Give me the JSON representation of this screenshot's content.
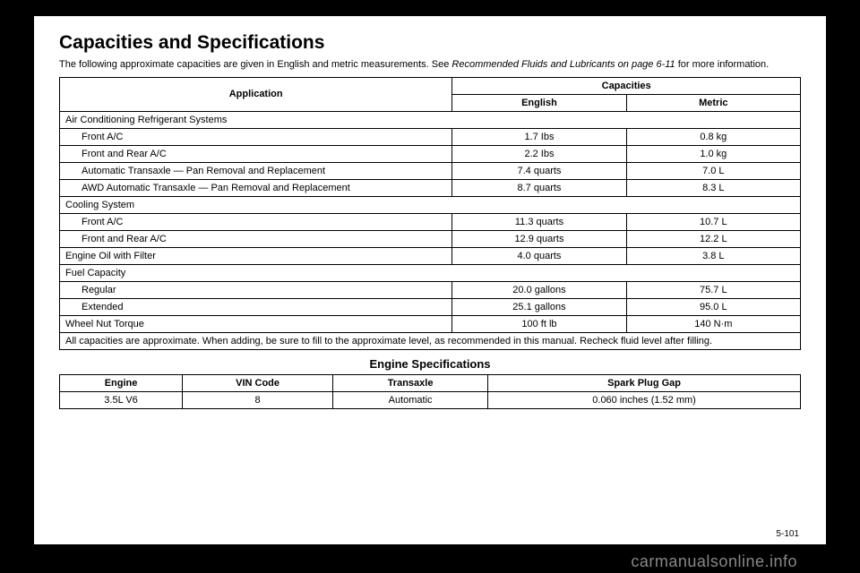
{
  "title": "Capacities and Specifications",
  "intro_plain": "The following approximate capacities are given in English and metric measurements. See ",
  "intro_italic": "Recommended Fluids and Lubricants on page 6‑11",
  "intro_tail": " for more information.",
  "headers": {
    "application": "Application",
    "capacities": "Capacities",
    "english": "English",
    "metric": "Metric"
  },
  "rows": [
    {
      "type": "section",
      "label": "Air Conditioning Refrigerant Systems"
    },
    {
      "type": "data",
      "indent": true,
      "label": "Front A/C",
      "english": "1.7 Ibs",
      "metric": "0.8 kg"
    },
    {
      "type": "data",
      "indent": true,
      "label": "Front and Rear A/C",
      "english": "2.2 Ibs",
      "metric": "1.0 kg"
    },
    {
      "type": "data",
      "indent": true,
      "label": "Automatic Transaxle — Pan Removal and Replacement",
      "english": "7.4 quarts",
      "metric": "7.0 L"
    },
    {
      "type": "data",
      "indent": true,
      "label": "AWD Automatic Transaxle — Pan Removal and Replacement",
      "english": "8.7 quarts",
      "metric": "8.3 L"
    },
    {
      "type": "section",
      "label": "Cooling System"
    },
    {
      "type": "data",
      "indent": true,
      "label": "Front A/C",
      "english": "11.3 quarts",
      "metric": "10.7 L"
    },
    {
      "type": "data",
      "indent": true,
      "label": "Front and Rear A/C",
      "english": "12.9 quarts",
      "metric": "12.2 L"
    },
    {
      "type": "data",
      "indent": false,
      "label": "Engine Oil with Filter",
      "english": "4.0 quarts",
      "metric": "3.8 L"
    },
    {
      "type": "section",
      "label": "Fuel Capacity"
    },
    {
      "type": "data",
      "indent": true,
      "label": "Regular",
      "english": "20.0 gallons",
      "metric": "75.7 L"
    },
    {
      "type": "data",
      "indent": true,
      "label": "Extended",
      "english": "25.1 gallons",
      "metric": "95.0 L"
    },
    {
      "type": "data",
      "indent": false,
      "label": "Wheel Nut Torque",
      "english": "100 ft lb",
      "metric": "140 N·m"
    },
    {
      "type": "footer",
      "label": "All capacities are approximate. When adding, be sure to fill to the approximate level, as recommended in this manual. Recheck fluid level after filling."
    }
  ],
  "engine_spec_title": "Engine Specifications",
  "eng_headers": {
    "engine": "Engine",
    "vin": "VIN Code",
    "trans": "Transaxle",
    "gap": "Spark Plug Gap"
  },
  "eng_row": {
    "engine": "3.5L V6",
    "vin": "8",
    "trans": "Automatic",
    "gap": "0.060 inches (1.52 mm)"
  },
  "pagenum": "5-101",
  "watermark": "carmanualsonline.info",
  "col_widths": {
    "app": "53%",
    "eng": "23.5%",
    "met": "23.5%"
  }
}
